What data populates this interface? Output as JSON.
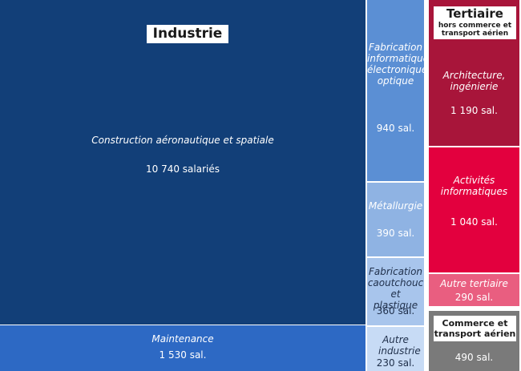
{
  "chart_data": {
    "type": "treemap",
    "groups": [
      {
        "name": "Industrie",
        "color": "#123f78",
        "items": [
          {
            "label": "Construction aéronautique et spatiale",
            "value_text": "10 740 salariés",
            "value": 10740
          },
          {
            "label": "Maintenance",
            "value_text": "1 530 sal.",
            "value": 1530
          },
          {
            "label": "Fabrication informatique, électronique, optique",
            "value_text": "940 sal.",
            "value": 940
          },
          {
            "label": "Métallurgie",
            "value_text": "390 sal.",
            "value": 390
          },
          {
            "label": "Fabrication caoutchouc et plastique",
            "value_text": "360 sal.",
            "value": 360
          },
          {
            "label": "Autre industrie",
            "value_text": "230 sal.",
            "value": 230
          }
        ]
      },
      {
        "name": "Tertiaire",
        "subtitle": "hors commerce et transport aérien",
        "color": "#a8153a",
        "items": [
          {
            "label": "Architecture, ingénierie",
            "value_text": "1 190 sal.",
            "value": 1190
          },
          {
            "label": "Activités informatiques",
            "value_text": "1 040 sal.",
            "value": 1040
          },
          {
            "label": "Autre tertiaire",
            "value_text": "290 sal.",
            "value": 290
          }
        ]
      },
      {
        "name": "Commerce et transport aérien",
        "color": "#7a7a7a",
        "items": [
          {
            "label": "",
            "value_text": "490 sal.",
            "value": 490
          }
        ]
      }
    ]
  }
}
